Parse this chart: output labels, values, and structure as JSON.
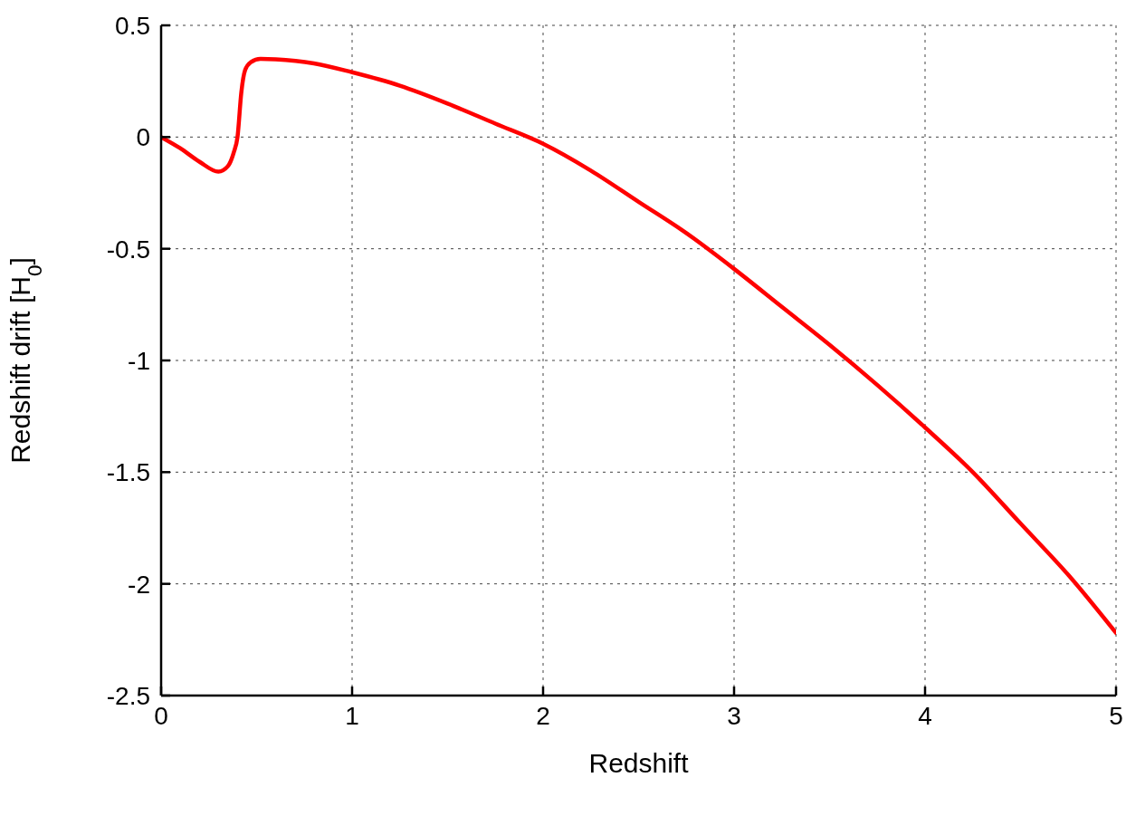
{
  "chart_data": {
    "type": "line",
    "xlabel": "Redshift",
    "ylabel": "Redshift drift [H$_{0}$]",
    "x": [
      0,
      0.1,
      0.2,
      0.3,
      0.35,
      0.38,
      0.4,
      0.42,
      0.44,
      0.47,
      0.52,
      0.6,
      0.8,
      1,
      1.25,
      1.5,
      1.75,
      2,
      2.25,
      2.5,
      2.75,
      3,
      3.25,
      3.5,
      3.75,
      4,
      4.25,
      4.5,
      4.75,
      5
    ],
    "series": [
      {
        "color": "#ff0000",
        "values": [
          0,
          -0.05,
          -0.11,
          -0.155,
          -0.13,
          -0.07,
          0,
          0.2,
          0.3,
          0.335,
          0.35,
          0.348,
          0.33,
          0.29,
          0.23,
          0.15,
          0.06,
          -0.03,
          -0.15,
          -0.29,
          -0.43,
          -0.59,
          -0.76,
          -0.93,
          -1.11,
          -1.3,
          -1.5,
          -1.73,
          -1.96,
          -2.22
        ]
      }
    ],
    "xlim": [
      0,
      5
    ],
    "xticks": [
      0,
      1,
      2,
      3,
      4,
      5
    ],
    "ylim": [
      -2.5,
      0.5
    ],
    "yticks": [
      -2.5,
      -2,
      -1.5,
      -1,
      -0.5,
      0,
      0.5
    ],
    "grid": true,
    "marker": "none",
    "line_style": "solid"
  }
}
